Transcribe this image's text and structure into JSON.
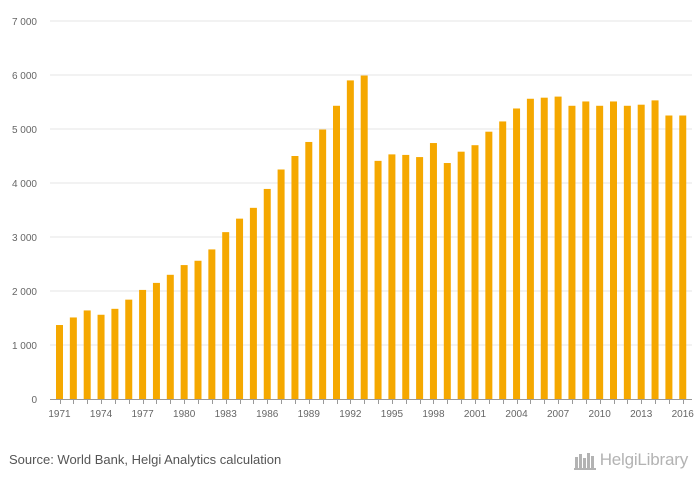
{
  "chart_data": {
    "type": "bar",
    "title": "",
    "xlabel": "",
    "ylabel": "",
    "ylim": [
      0,
      7000
    ],
    "y_ticks": [
      "0",
      "1 000",
      "2 000",
      "3 000",
      "4 000",
      "5 000",
      "6 000",
      "7 000"
    ],
    "x_tick_labels": [
      "1971",
      "1974",
      "1977",
      "1980",
      "1983",
      "1986",
      "1989",
      "1992",
      "1995",
      "1998",
      "2001",
      "2004",
      "2007",
      "2010",
      "2013",
      "2016"
    ],
    "grid": true,
    "legend": "none",
    "bar_color": "#f5a800",
    "categories": [
      1971,
      1972,
      1973,
      1974,
      1975,
      1976,
      1977,
      1978,
      1979,
      1980,
      1981,
      1982,
      1983,
      1984,
      1985,
      1986,
      1987,
      1988,
      1989,
      1990,
      1991,
      1992,
      1993,
      1994,
      1995,
      1996,
      1997,
      1998,
      1999,
      2000,
      2001,
      2002,
      2003,
      2004,
      2005,
      2006,
      2007,
      2008,
      2009,
      2010,
      2011,
      2012,
      2013,
      2014,
      2015,
      2016
    ],
    "values": [
      1370,
      1510,
      1640,
      1560,
      1670,
      1840,
      2020,
      2150,
      2300,
      2480,
      2560,
      2770,
      3090,
      3340,
      3540,
      3890,
      4250,
      4500,
      4760,
      4990,
      5430,
      5900,
      5990,
      4410,
      4530,
      4520,
      4480,
      4740,
      4370,
      4580,
      4700,
      4950,
      5140,
      5380,
      5560,
      5580,
      5600,
      5430,
      5510,
      5430,
      5510,
      5430,
      5450,
      5530,
      5250,
      5250
    ]
  },
  "footer": {
    "source": "Source: World Bank, Helgi Analytics calculation",
    "logo_text": "HelgiLibrary"
  }
}
